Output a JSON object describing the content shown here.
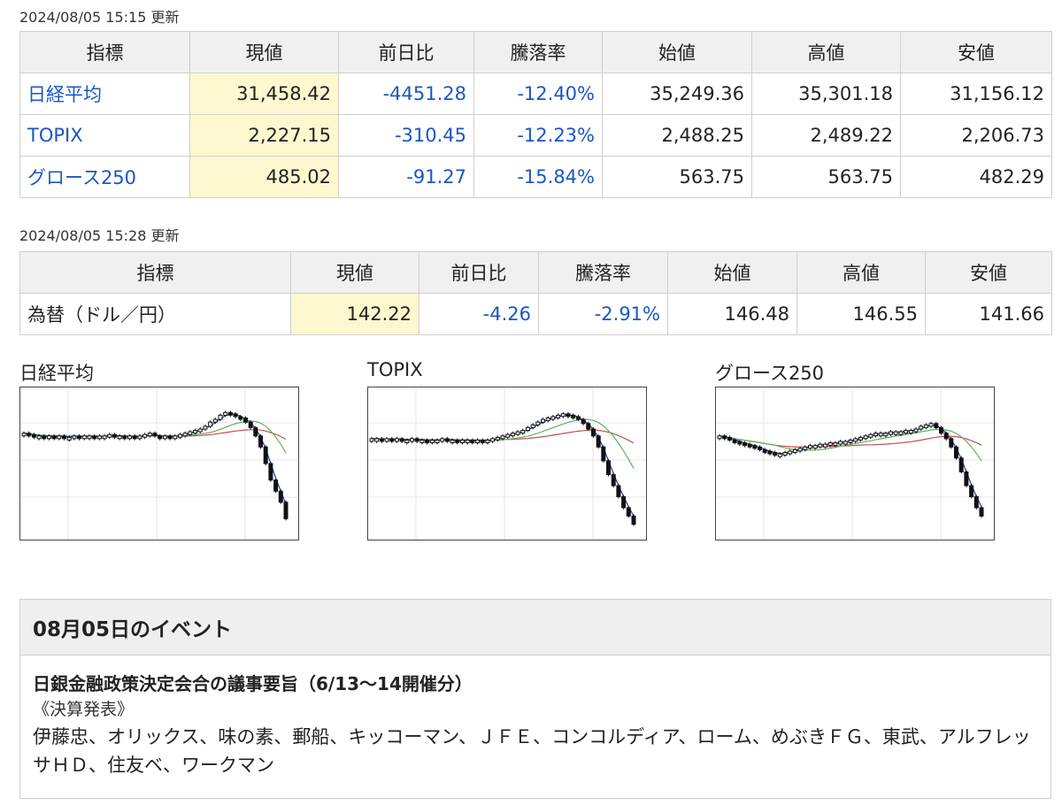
{
  "indices_update": "2024/08/05 15:15 更新",
  "fx_update": "2024/08/05 15:28 更新",
  "headers": [
    "指標",
    "現値",
    "前日比",
    "騰落率",
    "始値",
    "高値",
    "安値"
  ],
  "indices": [
    {
      "name": "日経平均",
      "price": "31,458.42",
      "change": "-4451.28",
      "pct": "-12.40%",
      "open": "35,249.36",
      "high": "35,301.18",
      "low": "31,156.12"
    },
    {
      "name": "TOPIX",
      "price": "2,227.15",
      "change": "-310.45",
      "pct": "-12.23%",
      "open": "2,488.25",
      "high": "2,489.22",
      "low": "2,206.73"
    },
    {
      "name": "グロース250",
      "price": "485.02",
      "change": "-91.27",
      "pct": "-15.84%",
      "open": "563.75",
      "high": "563.75",
      "low": "482.29"
    }
  ],
  "fx": [
    {
      "name": "為替（ドル／円）",
      "price": "142.22",
      "change": "-4.26",
      "pct": "-2.91%",
      "open": "146.48",
      "high": "146.55",
      "low": "141.66"
    }
  ],
  "charts": [
    {
      "title": "日経平均",
      "candles": [
        72,
        71,
        70,
        70,
        69,
        70,
        69,
        70,
        69,
        69,
        70,
        69,
        70,
        70,
        69,
        70,
        70,
        71,
        70,
        70,
        69,
        70,
        69,
        70,
        71,
        72,
        70,
        69,
        70,
        69,
        70,
        71,
        72,
        73,
        74,
        75,
        77,
        80,
        82,
        85,
        87,
        86,
        84,
        83,
        80,
        76,
        70,
        62,
        50,
        38,
        30,
        22,
        10
      ],
      "ma_fast_color": "#1f3c9c",
      "ma_mid_color": "#5fb35f",
      "ma_slow_color": "#c0504d"
    },
    {
      "title": "TOPIX",
      "candles": [
        68,
        68,
        67,
        68,
        67,
        68,
        67,
        67,
        68,
        67,
        67,
        66,
        67,
        67,
        68,
        67,
        67,
        66,
        67,
        67,
        66,
        67,
        66,
        67,
        68,
        69,
        70,
        71,
        72,
        73,
        74,
        76,
        78,
        80,
        82,
        83,
        84,
        85,
        86,
        85,
        84,
        82,
        79,
        75,
        70,
        62,
        52,
        42,
        34,
        26,
        18,
        12,
        6
      ],
      "ma_fast_color": "#1f3c9c",
      "ma_mid_color": "#5fb35f",
      "ma_slow_color": "#c0504d"
    },
    {
      "title": "グロース250",
      "candles": [
        70,
        69,
        67,
        66,
        65,
        64,
        63,
        62,
        60,
        59,
        58,
        57,
        57,
        58,
        59,
        60,
        61,
        62,
        63,
        63,
        64,
        64,
        65,
        65,
        66,
        66,
        67,
        68,
        69,
        70,
        71,
        72,
        72,
        72,
        73,
        73,
        73,
        74,
        74,
        75,
        77,
        78,
        79,
        76,
        72,
        68,
        62,
        54,
        44,
        34,
        26,
        18,
        12
      ],
      "ma_fast_color": "#1f3c9c",
      "ma_mid_color": "#5fb35f",
      "ma_slow_color": "#c0504d"
    }
  ],
  "event": {
    "header": "08月05日のイベント",
    "title": "日銀金融政策決定会合の議事要旨（6/13～14開催分）",
    "sub": "《決算発表》",
    "list": "伊藤忠、オリックス、味の素、郵船、キッコーマン、ＪＦＥ、コンコルディア、ローム、めぶきＦＧ、東武、アルフレッサＨＤ、住友ベ、ワークマン"
  }
}
